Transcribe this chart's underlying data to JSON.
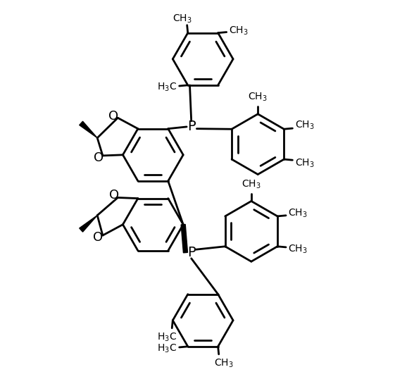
{
  "bg_color": "#ffffff",
  "line_color": "#000000",
  "lw": 2.0,
  "lw_bold": 5.5,
  "figsize": [
    5.61,
    5.55
  ],
  "dpi": 100,
  "xlim": [
    0,
    10
  ],
  "ylim": [
    0,
    10
  ],
  "hr": 0.78
}
